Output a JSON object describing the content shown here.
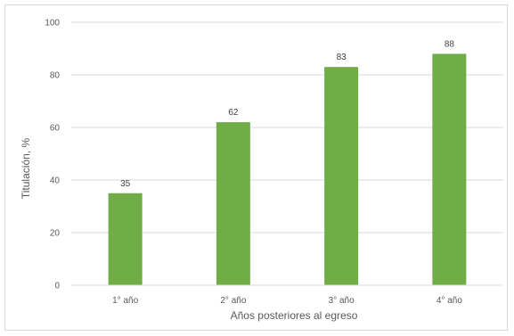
{
  "chart_data": {
    "type": "bar",
    "categories": [
      "1° año",
      "2° año",
      "3° año",
      "4° año"
    ],
    "values": [
      35,
      62,
      83,
      88
    ],
    "data_labels": [
      "35",
      "62",
      "83",
      "88"
    ],
    "title": "",
    "xlabel": "Años posteriores al egreso",
    "ylabel": "Titulación, %",
    "ylim": [
      0,
      100
    ],
    "yticks": [
      "0",
      "20",
      "40",
      "60",
      "80",
      "100"
    ],
    "grid": true,
    "legend": "none",
    "bar_color": "#70ad47",
    "grid_color": "#d9d9d9"
  }
}
